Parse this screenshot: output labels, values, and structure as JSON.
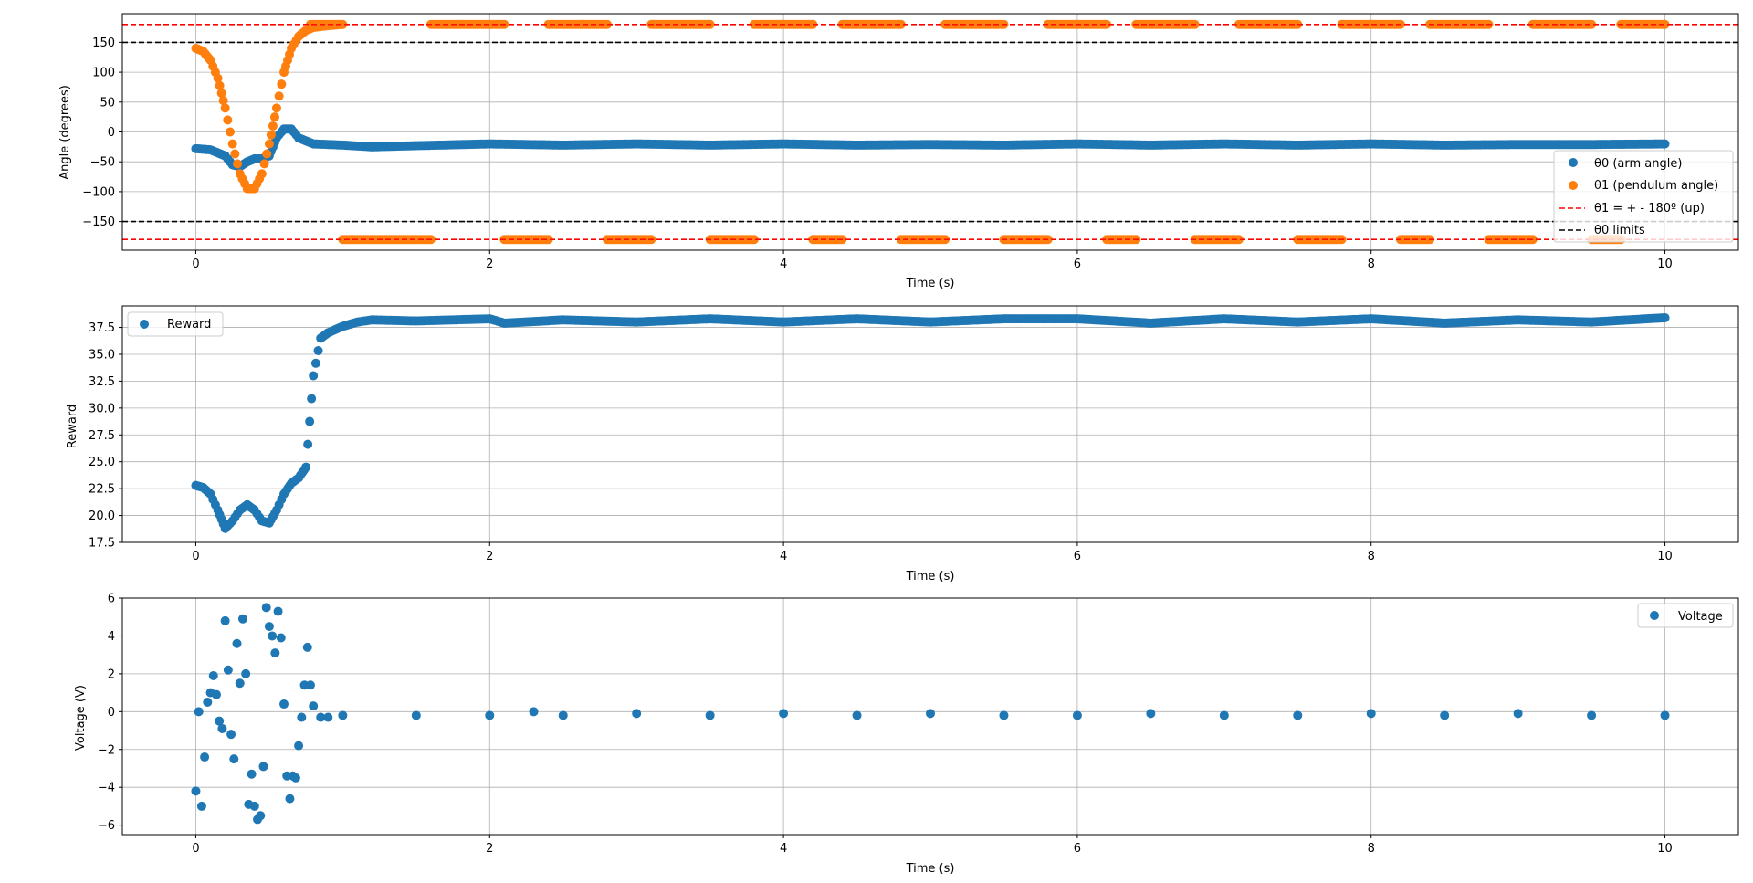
{
  "colors": {
    "series_blue": "#1f77b4",
    "series_orange": "#ff7f0e",
    "ref_red": "#ff0000",
    "limit_black": "#000000",
    "grid": "#b0b0b0"
  },
  "chart_data": [
    {
      "type": "scatter",
      "ylabel": "Angle (degrees)",
      "xlabel": "Time (s)",
      "xlim": [
        -0.5,
        10.5
      ],
      "ylim": [
        -198,
        198
      ],
      "xticks": [
        0,
        2,
        4,
        6,
        8,
        10
      ],
      "yticks": [
        -150,
        -100,
        -50,
        0,
        50,
        100,
        150
      ],
      "grid": true,
      "legend_position": "center-right",
      "series": [
        {
          "name": "θ0 (arm angle)",
          "color": "#1f77b4",
          "x": [
            0,
            0.1,
            0.2,
            0.25,
            0.3,
            0.35,
            0.4,
            0.45,
            0.5,
            0.55,
            0.6,
            0.65,
            0.7,
            0.8,
            1.0,
            1.2,
            1.5,
            2.0,
            2.5,
            3.0,
            3.5,
            4.0,
            4.5,
            5.0,
            5.5,
            6.0,
            6.5,
            7.0,
            7.5,
            8.0,
            8.5,
            9.0,
            9.5,
            10.0
          ],
          "values": [
            -28,
            -30,
            -40,
            -55,
            -58,
            -50,
            -45,
            -45,
            -40,
            -10,
            5,
            5,
            -10,
            -20,
            -22,
            -25,
            -23,
            -20,
            -22,
            -20,
            -22,
            -20,
            -22,
            -21,
            -22,
            -20,
            -22,
            -20,
            -22,
            -20,
            -22,
            -21,
            -21,
            -20
          ]
        },
        {
          "name": "θ1 (pendulum angle)",
          "color": "#ff7f0e",
          "x": [
            0,
            0.05,
            0.1,
            0.15,
            0.2,
            0.25,
            0.3,
            0.35,
            0.4,
            0.45,
            0.5,
            0.55,
            0.6,
            0.65,
            0.7,
            0.75,
            0.8,
            0.9,
            1.0
          ],
          "values": [
            140,
            135,
            120,
            90,
            40,
            -20,
            -70,
            -95,
            -95,
            -70,
            -20,
            40,
            100,
            140,
            160,
            170,
            175,
            178,
            180
          ]
        }
      ],
      "wrapped_segments": {
        "upper": [
          [
            0.2,
            1.0
          ],
          [
            1.6,
            2.1
          ],
          [
            2.4,
            2.8
          ],
          [
            3.1,
            3.5
          ],
          [
            3.8,
            4.2
          ],
          [
            4.4,
            4.8
          ],
          [
            5.1,
            5.5
          ],
          [
            5.8,
            6.2
          ],
          [
            6.4,
            6.8
          ],
          [
            7.1,
            7.5
          ],
          [
            7.8,
            8.2
          ],
          [
            8.4,
            8.8
          ],
          [
            9.1,
            9.5
          ],
          [
            9.7,
            10.0
          ]
        ],
        "lower": [
          [
            1.0,
            1.6
          ],
          [
            2.1,
            2.4
          ],
          [
            2.8,
            3.1
          ],
          [
            3.5,
            3.8
          ],
          [
            4.2,
            4.4
          ],
          [
            4.8,
            5.1
          ],
          [
            5.5,
            5.8
          ],
          [
            6.2,
            6.4
          ],
          [
            6.8,
            7.1
          ],
          [
            7.5,
            7.8
          ],
          [
            8.2,
            8.4
          ],
          [
            8.8,
            9.1
          ],
          [
            9.5,
            9.7
          ]
        ]
      },
      "reference_lines": [
        {
          "name": "θ1 = + - 180º (up)",
          "values": [
            180,
            -180
          ],
          "color": "#ff0000",
          "style": "dashed"
        },
        {
          "name": "θ0 limits",
          "values": [
            150,
            -150
          ],
          "color": "#000000",
          "style": "dashed"
        }
      ]
    },
    {
      "type": "scatter",
      "ylabel": "Reward",
      "xlabel": "Time (s)",
      "xlim": [
        -0.5,
        10.5
      ],
      "ylim": [
        17.5,
        39.5
      ],
      "xticks": [
        0,
        2,
        4,
        6,
        8,
        10
      ],
      "yticks": [
        17.5,
        20.0,
        22.5,
        25.0,
        27.5,
        30.0,
        32.5,
        35.0,
        37.5
      ],
      "grid": true,
      "legend_position": "top-left",
      "series": [
        {
          "name": "Reward",
          "color": "#1f77b4",
          "x": [
            0,
            0.05,
            0.1,
            0.15,
            0.2,
            0.25,
            0.3,
            0.35,
            0.4,
            0.45,
            0.5,
            0.55,
            0.6,
            0.65,
            0.7,
            0.75,
            0.8,
            0.85,
            0.9,
            0.95,
            1.0,
            1.1,
            1.2,
            1.5,
            2.0,
            2.1,
            2.5,
            3.0,
            3.5,
            4.0,
            4.5,
            5.0,
            5.5,
            6.0,
            6.5,
            7.0,
            7.5,
            8.0,
            8.5,
            9.0,
            9.5,
            10.0
          ],
          "values": [
            22.8,
            22.6,
            22.0,
            20.5,
            18.8,
            19.5,
            20.5,
            21.0,
            20.5,
            19.5,
            19.3,
            20.5,
            22.0,
            23.0,
            23.5,
            24.5,
            33.0,
            36.5,
            37.0,
            37.3,
            37.6,
            38.0,
            38.2,
            38.1,
            38.3,
            37.9,
            38.2,
            38.0,
            38.3,
            38.0,
            38.3,
            38.0,
            38.3,
            38.3,
            37.9,
            38.3,
            38.0,
            38.3,
            37.9,
            38.2,
            38.0,
            38.4
          ]
        }
      ]
    },
    {
      "type": "scatter",
      "ylabel": "Voltage (V)",
      "xlabel": "Time (s)",
      "xlim": [
        -0.5,
        10.5
      ],
      "ylim": [
        -6.5,
        6.0
      ],
      "xticks": [
        0,
        2,
        4,
        6,
        8,
        10
      ],
      "yticks": [
        -6,
        -4,
        -2,
        0,
        2,
        4,
        6
      ],
      "grid": true,
      "legend_position": "top-right",
      "series": [
        {
          "name": "Voltage",
          "color": "#1f77b4",
          "x": [
            0,
            0.02,
            0.04,
            0.06,
            0.08,
            0.1,
            0.12,
            0.14,
            0.16,
            0.18,
            0.2,
            0.22,
            0.24,
            0.26,
            0.28,
            0.3,
            0.32,
            0.34,
            0.36,
            0.38,
            0.4,
            0.42,
            0.44,
            0.46,
            0.48,
            0.5,
            0.52,
            0.54,
            0.56,
            0.58,
            0.6,
            0.62,
            0.64,
            0.66,
            0.68,
            0.7,
            0.72,
            0.74,
            0.76,
            0.78,
            0.8,
            0.85,
            0.9,
            1.0,
            1.5,
            2.0,
            2.3,
            2.5,
            3.0,
            3.5,
            4.0,
            4.5,
            5.0,
            5.5,
            6.0,
            6.5,
            7.0,
            7.5,
            8.0,
            8.5,
            9.0,
            9.5,
            10.0
          ],
          "values": [
            -4.2,
            0.0,
            -5.0,
            -2.4,
            0.5,
            1.0,
            1.9,
            0.9,
            -0.5,
            -0.9,
            4.8,
            2.2,
            -1.2,
            -2.5,
            3.6,
            1.5,
            4.9,
            2.0,
            -4.9,
            -3.3,
            -5.0,
            -5.7,
            -5.5,
            -2.9,
            5.5,
            4.5,
            4.0,
            3.1,
            5.3,
            3.9,
            0.4,
            -3.4,
            -4.6,
            -3.4,
            -3.5,
            -1.8,
            -0.3,
            1.4,
            3.4,
            1.4,
            0.3,
            -0.3,
            -0.3,
            -0.2,
            -0.2,
            -0.2,
            0.0,
            -0.2,
            -0.1,
            -0.2,
            -0.1,
            -0.2,
            -0.1,
            -0.2,
            -0.2,
            -0.1,
            -0.2,
            -0.2,
            -0.1,
            -0.2,
            -0.1,
            -0.2,
            -0.2
          ]
        }
      ]
    }
  ]
}
